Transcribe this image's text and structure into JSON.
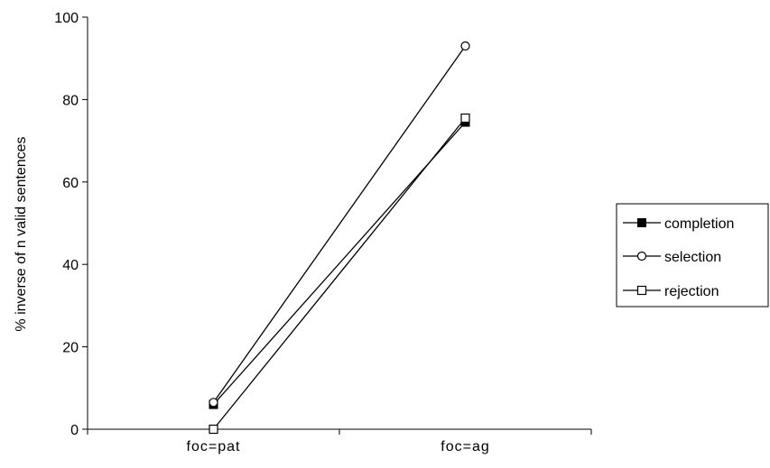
{
  "chart_data": {
    "type": "line",
    "title": "",
    "xlabel": "",
    "ylabel": "% inverse of n valid sentences",
    "categories": [
      "foc=pat",
      "foc=ag"
    ],
    "ylim": [
      0,
      100
    ],
    "yticks": [
      0,
      20,
      40,
      60,
      80,
      100
    ],
    "grid": false,
    "legend_position": "right",
    "series": [
      {
        "name": "completion",
        "values": [
          6,
          74.5
        ],
        "marker": "filled-square",
        "color": "#000000"
      },
      {
        "name": "selection",
        "values": [
          6.5,
          93
        ],
        "marker": "open-circle",
        "color": "#000000"
      },
      {
        "name": "rejection",
        "values": [
          0,
          75.5
        ],
        "marker": "open-square",
        "color": "#000000"
      }
    ]
  }
}
